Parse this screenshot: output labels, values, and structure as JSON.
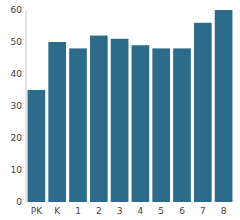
{
  "chart_data": {
    "type": "bar",
    "categories": [
      "PK",
      "K",
      "1",
      "2",
      "3",
      "4",
      "5",
      "6",
      "7",
      "8"
    ],
    "values": [
      35,
      50,
      48,
      52,
      51,
      49,
      48,
      48,
      56,
      60
    ],
    "color": "#2d6b8a",
    "ylim": [
      0,
      60
    ],
    "yticks": [
      0,
      10,
      20,
      30,
      40,
      50,
      60
    ],
    "grid": false
  }
}
